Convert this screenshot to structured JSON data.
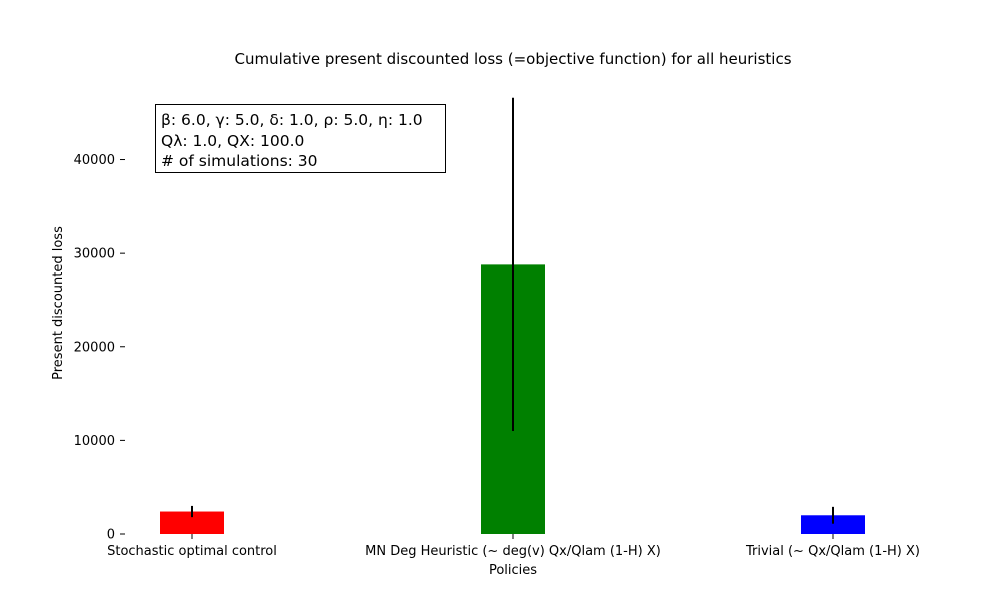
{
  "chart_data": {
    "type": "bar",
    "title": "Cumulative present discounted loss (=objective function) for all heuristics",
    "xlabel": "Policies",
    "ylabel": "Present discounted loss",
    "categories": [
      "Stochastic optimal control",
      "MN Deg Heuristic (~ deg(v) Qx/Qlam (1-H) X)",
      "Trivial (~ Qx/Qlam (1-H) X)"
    ],
    "values": [
      2400,
      28800,
      2000
    ],
    "errors": [
      600,
      17800,
      900
    ],
    "colors": [
      "#ff0000",
      "#008000",
      "#0000ff"
    ],
    "error_color": "#000000",
    "ylim": [
      0,
      47000
    ],
    "yticks": [
      0,
      10000,
      20000,
      30000,
      40000
    ],
    "grid": false,
    "annotation": {
      "line1": "β: 6.0, γ: 5.0, δ: 1.0, ρ: 5.0, η: 1.0",
      "line2": "Qλ: 1.0, QX: 100.0",
      "line3": "# of simulations: 30"
    }
  }
}
